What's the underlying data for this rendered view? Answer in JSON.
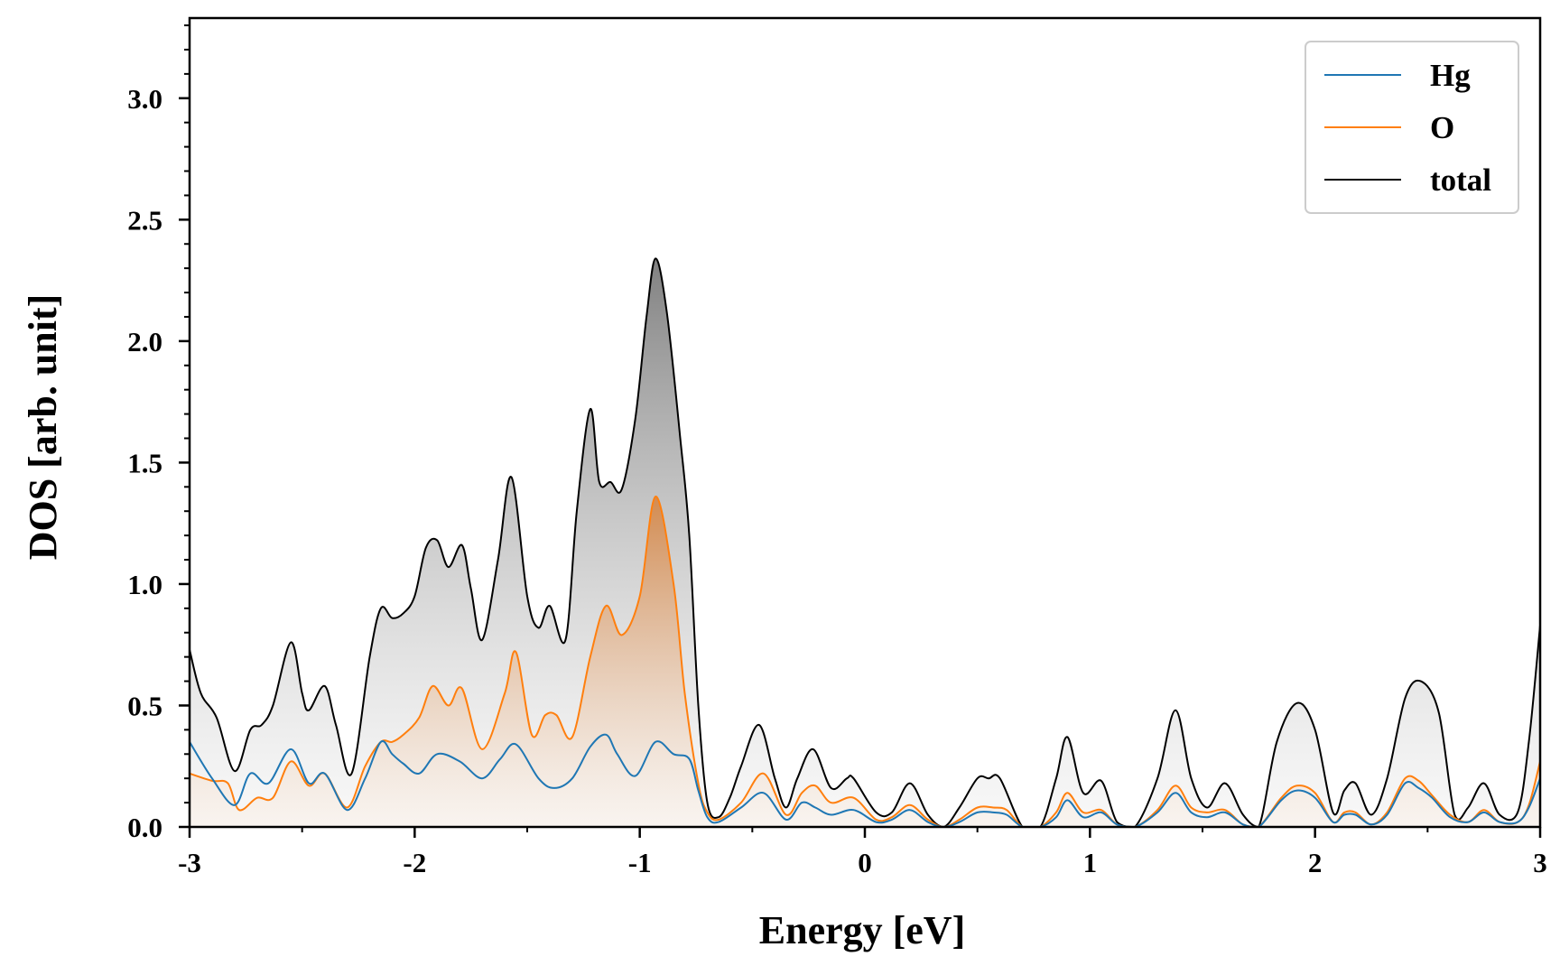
{
  "chart_data": {
    "type": "line",
    "title": "",
    "xlabel": "Energy [eV]",
    "ylabel": "DOS [arb. unit]",
    "xlim": [
      -3,
      3
    ],
    "ylim": [
      0,
      3.33
    ],
    "xticks": [
      -3,
      -2,
      -1,
      0,
      1,
      2,
      3
    ],
    "xtick_labels": [
      "-3",
      "-2",
      "-1",
      "0",
      "1",
      "2",
      "3"
    ],
    "yticks": [
      0,
      0.5,
      1.0,
      1.5,
      2.0,
      2.5,
      3.0
    ],
    "ytick_labels": [
      "0.0",
      "0.5",
      "1.0",
      "1.5",
      "2.0",
      "2.5",
      "3.0"
    ],
    "grid": false,
    "legend_position": "top-right",
    "series": [
      {
        "name": "Hg",
        "color": "#1f77b4",
        "filled": false,
        "x": [
          -3.0,
          -2.9,
          -2.8,
          -2.73,
          -2.65,
          -2.55,
          -2.47,
          -2.4,
          -2.3,
          -2.22,
          -2.15,
          -2.1,
          -2.05,
          -1.98,
          -1.9,
          -1.8,
          -1.7,
          -1.62,
          -1.55,
          -1.45,
          -1.38,
          -1.3,
          -1.22,
          -1.15,
          -1.1,
          -1.02,
          -0.93,
          -0.85,
          -0.78,
          -0.74,
          -0.7,
          -0.65,
          -0.55,
          -0.45,
          -0.35,
          -0.28,
          -0.22,
          -0.15,
          -0.05,
          0.05,
          0.12,
          0.2,
          0.28,
          0.35,
          0.42,
          0.5,
          0.57,
          0.63,
          0.7,
          0.78,
          0.85,
          0.9,
          0.97,
          1.05,
          1.12,
          1.2,
          1.3,
          1.38,
          1.45,
          1.52,
          1.6,
          1.68,
          1.75,
          1.85,
          1.92,
          2.0,
          2.08,
          2.13,
          2.18,
          2.25,
          2.32,
          2.4,
          2.46,
          2.52,
          2.6,
          2.68,
          2.75,
          2.82,
          2.9,
          2.95,
          3.0
        ],
        "y": [
          0.35,
          0.2,
          0.09,
          0.22,
          0.18,
          0.32,
          0.18,
          0.22,
          0.07,
          0.2,
          0.35,
          0.3,
          0.26,
          0.22,
          0.3,
          0.27,
          0.2,
          0.28,
          0.34,
          0.2,
          0.16,
          0.2,
          0.33,
          0.38,
          0.3,
          0.21,
          0.35,
          0.3,
          0.28,
          0.15,
          0.04,
          0.02,
          0.08,
          0.14,
          0.03,
          0.1,
          0.08,
          0.05,
          0.07,
          0.02,
          0.03,
          0.07,
          0.02,
          0.0,
          0.02,
          0.06,
          0.06,
          0.05,
          0.0,
          0.0,
          0.04,
          0.11,
          0.04,
          0.06,
          0.01,
          0.0,
          0.06,
          0.14,
          0.06,
          0.04,
          0.06,
          0.01,
          0.0,
          0.11,
          0.15,
          0.12,
          0.02,
          0.05,
          0.05,
          0.01,
          0.05,
          0.18,
          0.16,
          0.12,
          0.04,
          0.02,
          0.06,
          0.02,
          0.02,
          0.08,
          0.2
        ]
      },
      {
        "name": "O",
        "color": "#ff7f0e",
        "filled": true,
        "x": [
          -3.0,
          -2.9,
          -2.83,
          -2.78,
          -2.7,
          -2.63,
          -2.55,
          -2.47,
          -2.4,
          -2.3,
          -2.22,
          -2.15,
          -2.1,
          -2.05,
          -1.98,
          -1.92,
          -1.85,
          -1.79,
          -1.7,
          -1.6,
          -1.55,
          -1.48,
          -1.42,
          -1.37,
          -1.3,
          -1.22,
          -1.15,
          -1.08,
          -1.0,
          -0.93,
          -0.85,
          -0.8,
          -0.74,
          -0.7,
          -0.65,
          -0.55,
          -0.45,
          -0.35,
          -0.28,
          -0.22,
          -0.15,
          -0.05,
          0.05,
          0.12,
          0.2,
          0.28,
          0.35,
          0.42,
          0.5,
          0.57,
          0.63,
          0.7,
          0.78,
          0.85,
          0.9,
          0.97,
          1.05,
          1.12,
          1.2,
          1.3,
          1.38,
          1.45,
          1.52,
          1.6,
          1.68,
          1.75,
          1.85,
          1.92,
          2.0,
          2.08,
          2.13,
          2.18,
          2.25,
          2.32,
          2.4,
          2.46,
          2.52,
          2.6,
          2.68,
          2.75,
          2.82,
          2.9,
          2.95,
          3.0
        ],
        "y": [
          0.22,
          0.19,
          0.18,
          0.07,
          0.12,
          0.12,
          0.27,
          0.17,
          0.22,
          0.08,
          0.25,
          0.35,
          0.35,
          0.38,
          0.45,
          0.58,
          0.5,
          0.57,
          0.32,
          0.55,
          0.72,
          0.38,
          0.46,
          0.46,
          0.37,
          0.7,
          0.91,
          0.79,
          0.95,
          1.36,
          1.0,
          0.55,
          0.18,
          0.06,
          0.03,
          0.1,
          0.22,
          0.05,
          0.14,
          0.17,
          0.1,
          0.12,
          0.03,
          0.04,
          0.09,
          0.03,
          0.0,
          0.03,
          0.08,
          0.08,
          0.07,
          0.0,
          0.0,
          0.06,
          0.14,
          0.06,
          0.07,
          0.01,
          0.0,
          0.07,
          0.17,
          0.08,
          0.06,
          0.07,
          0.01,
          0.0,
          0.12,
          0.17,
          0.14,
          0.02,
          0.06,
          0.06,
          0.01,
          0.06,
          0.2,
          0.19,
          0.13,
          0.05,
          0.02,
          0.07,
          0.02,
          0.02,
          0.09,
          0.27
        ]
      },
      {
        "name": "total",
        "color": "#000000",
        "filled": true,
        "x": [
          -3.0,
          -2.95,
          -2.88,
          -2.8,
          -2.73,
          -2.68,
          -2.63,
          -2.55,
          -2.5,
          -2.47,
          -2.4,
          -2.35,
          -2.28,
          -2.2,
          -2.15,
          -2.1,
          -2.05,
          -2.0,
          -1.95,
          -1.9,
          -1.85,
          -1.79,
          -1.75,
          -1.7,
          -1.63,
          -1.57,
          -1.5,
          -1.45,
          -1.4,
          -1.33,
          -1.28,
          -1.22,
          -1.18,
          -1.13,
          -1.08,
          -1.02,
          -0.97,
          -0.93,
          -0.88,
          -0.82,
          -0.78,
          -0.74,
          -0.7,
          -0.65,
          -0.6,
          -0.55,
          -0.47,
          -0.4,
          -0.35,
          -0.3,
          -0.23,
          -0.15,
          -0.08,
          -0.05,
          0.05,
          0.12,
          0.2,
          0.28,
          0.35,
          0.42,
          0.5,
          0.55,
          0.6,
          0.7,
          0.78,
          0.85,
          0.9,
          0.97,
          1.05,
          1.12,
          1.2,
          1.3,
          1.38,
          1.45,
          1.52,
          1.6,
          1.68,
          1.75,
          1.83,
          1.92,
          2.0,
          2.08,
          2.13,
          2.18,
          2.25,
          2.32,
          2.4,
          2.47,
          2.55,
          2.62,
          2.68,
          2.75,
          2.82,
          2.9,
          2.95,
          3.0
        ],
        "y": [
          0.73,
          0.55,
          0.45,
          0.23,
          0.4,
          0.42,
          0.5,
          0.76,
          0.55,
          0.48,
          0.58,
          0.42,
          0.22,
          0.7,
          0.9,
          0.86,
          0.88,
          0.95,
          1.15,
          1.18,
          1.07,
          1.16,
          0.98,
          0.77,
          1.1,
          1.44,
          0.95,
          0.82,
          0.91,
          0.77,
          1.3,
          1.72,
          1.42,
          1.42,
          1.39,
          1.68,
          2.1,
          2.34,
          2.12,
          1.6,
          1.2,
          0.5,
          0.1,
          0.04,
          0.12,
          0.25,
          0.42,
          0.2,
          0.08,
          0.2,
          0.32,
          0.16,
          0.2,
          0.2,
          0.06,
          0.06,
          0.18,
          0.05,
          0.0,
          0.08,
          0.2,
          0.2,
          0.2,
          0.0,
          0.0,
          0.2,
          0.37,
          0.14,
          0.19,
          0.02,
          0.0,
          0.2,
          0.48,
          0.2,
          0.08,
          0.18,
          0.05,
          0.0,
          0.35,
          0.51,
          0.4,
          0.06,
          0.15,
          0.18,
          0.05,
          0.2,
          0.53,
          0.6,
          0.47,
          0.05,
          0.08,
          0.18,
          0.05,
          0.06,
          0.35,
          0.83
        ]
      }
    ]
  }
}
